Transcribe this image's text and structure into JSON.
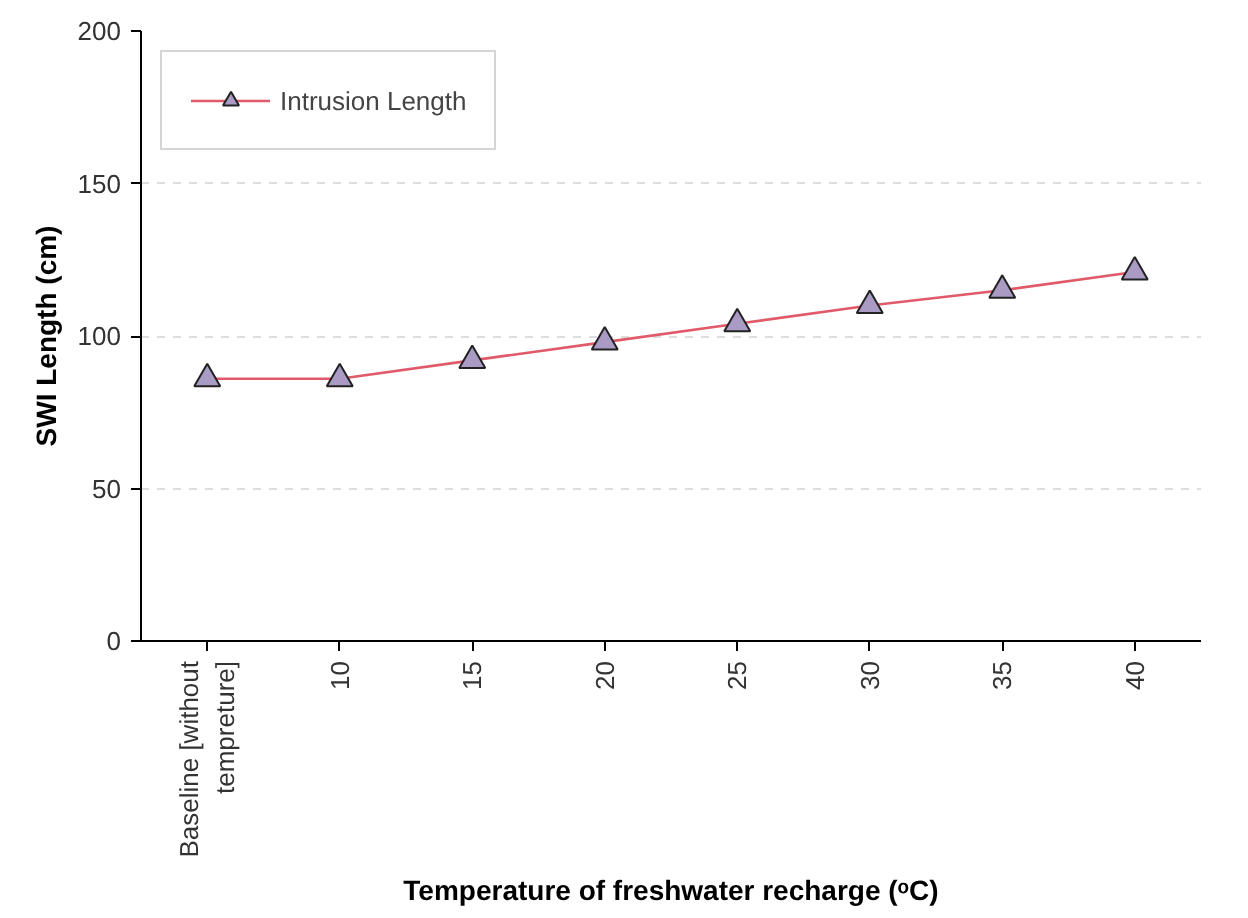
{
  "chart_data": {
    "type": "line",
    "xlabel": "Temperature of freshwater recharge (ᵒC)",
    "ylabel": "SWI Length (cm)",
    "categories": [
      "Baseline [without tempreture]",
      "10",
      "15",
      "20",
      "25",
      "30",
      "35",
      "40"
    ],
    "series": [
      {
        "name": "Intrusion Length",
        "color": "#e05a6a",
        "values": [
          86,
          86,
          92,
          98,
          104,
          110,
          115,
          121
        ]
      }
    ],
    "marker": "triangle",
    "ylim": [
      0,
      200
    ],
    "yticks": [
      0,
      50,
      100,
      150,
      200
    ],
    "grid": "y",
    "legend": "top left"
  }
}
